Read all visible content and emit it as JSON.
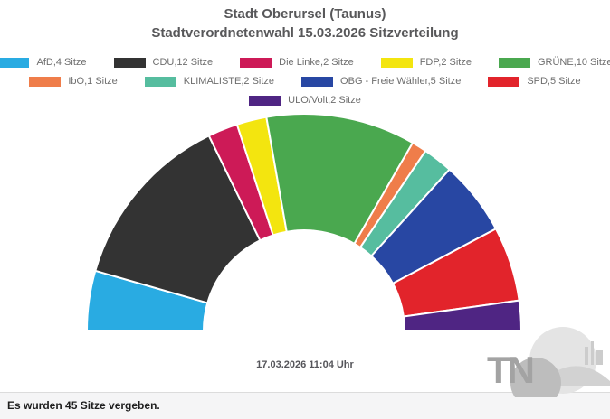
{
  "title": {
    "line1": "Stadt Oberursel (Taunus)",
    "line2": "Stadtverordnetenwahl 15.03.2026 Sitzverteilung"
  },
  "chart_data": {
    "type": "pie",
    "variant": "half-donut",
    "title": "Stadt Oberursel (Taunus) Stadtverordnetenwahl 15.03.2026 Sitzverteilung",
    "total_seats": 45,
    "start_angle_deg": 180,
    "end_angle_deg": 0,
    "legend_position": "top",
    "series": [
      {
        "name": "AfD",
        "label": "AfD,4 Sitze",
        "seats": 4,
        "color": "#29abe2",
        "legend_row": 0
      },
      {
        "name": "CDU",
        "label": "CDU,12 Sitze",
        "seats": 12,
        "color": "#333333",
        "legend_row": 0
      },
      {
        "name": "Die Linke",
        "label": "Die Linke,2 Sitze",
        "seats": 2,
        "color": "#cd1a57",
        "legend_row": 0
      },
      {
        "name": "FDP",
        "label": "FDP,2 Sitze",
        "seats": 2,
        "color": "#f3e50f",
        "legend_row": 0
      },
      {
        "name": "GRÜNE",
        "label": "GRÜNE,10 Sitze",
        "seats": 10,
        "color": "#4aa84f",
        "legend_row": 0
      },
      {
        "name": "IbO",
        "label": "IbO,1 Sitze",
        "seats": 1,
        "color": "#ef7d4a",
        "legend_row": 1
      },
      {
        "name": "KLIMALISTE",
        "label": "KLIMALISTE,2 Sitze",
        "seats": 2,
        "color": "#56bd9f",
        "legend_row": 1
      },
      {
        "name": "OBG - Freie Wähler",
        "label": "OBG - Freie Wähler,5 Sitze",
        "seats": 5,
        "color": "#2847a3",
        "legend_row": 1
      },
      {
        "name": "SPD",
        "label": "SPD,5 Sitze",
        "seats": 5,
        "color": "#e2242b",
        "legend_row": 1
      },
      {
        "name": "ULO/Volt",
        "label": "ULO/Volt,2 Sitze",
        "seats": 2,
        "color": "#4f2583",
        "legend_row": 2
      }
    ]
  },
  "timestamp": "17.03.2026 11:04 Uhr",
  "footer": {
    "text": "Es wurden 45 Sitze vergeben."
  },
  "watermark": {
    "text": "TN"
  }
}
